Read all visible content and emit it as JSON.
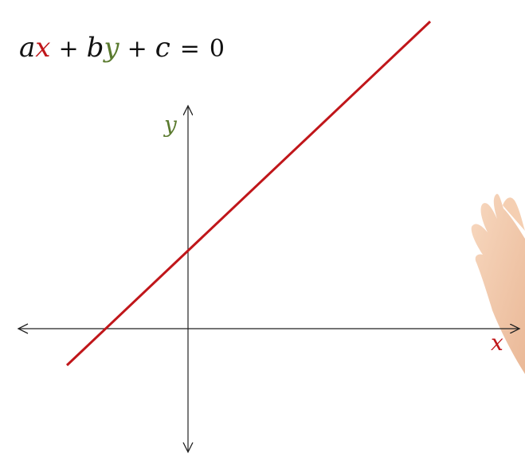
{
  "equation": {
    "a": "a",
    "x": "x",
    "plus1": "+",
    "b": "b",
    "y": "y",
    "plus2": "+",
    "c": "c",
    "equals": "=",
    "zero": "0"
  },
  "axes": {
    "x_label": "x",
    "y_label": "y"
  },
  "colors": {
    "line": "#c0161a",
    "x_var": "#c0161a",
    "y_var": "#5a7a2e",
    "text": "#111111",
    "axis": "#222222",
    "hand": "#f2c8a8"
  },
  "illustration": {
    "hand": "raised-hand-icon"
  }
}
